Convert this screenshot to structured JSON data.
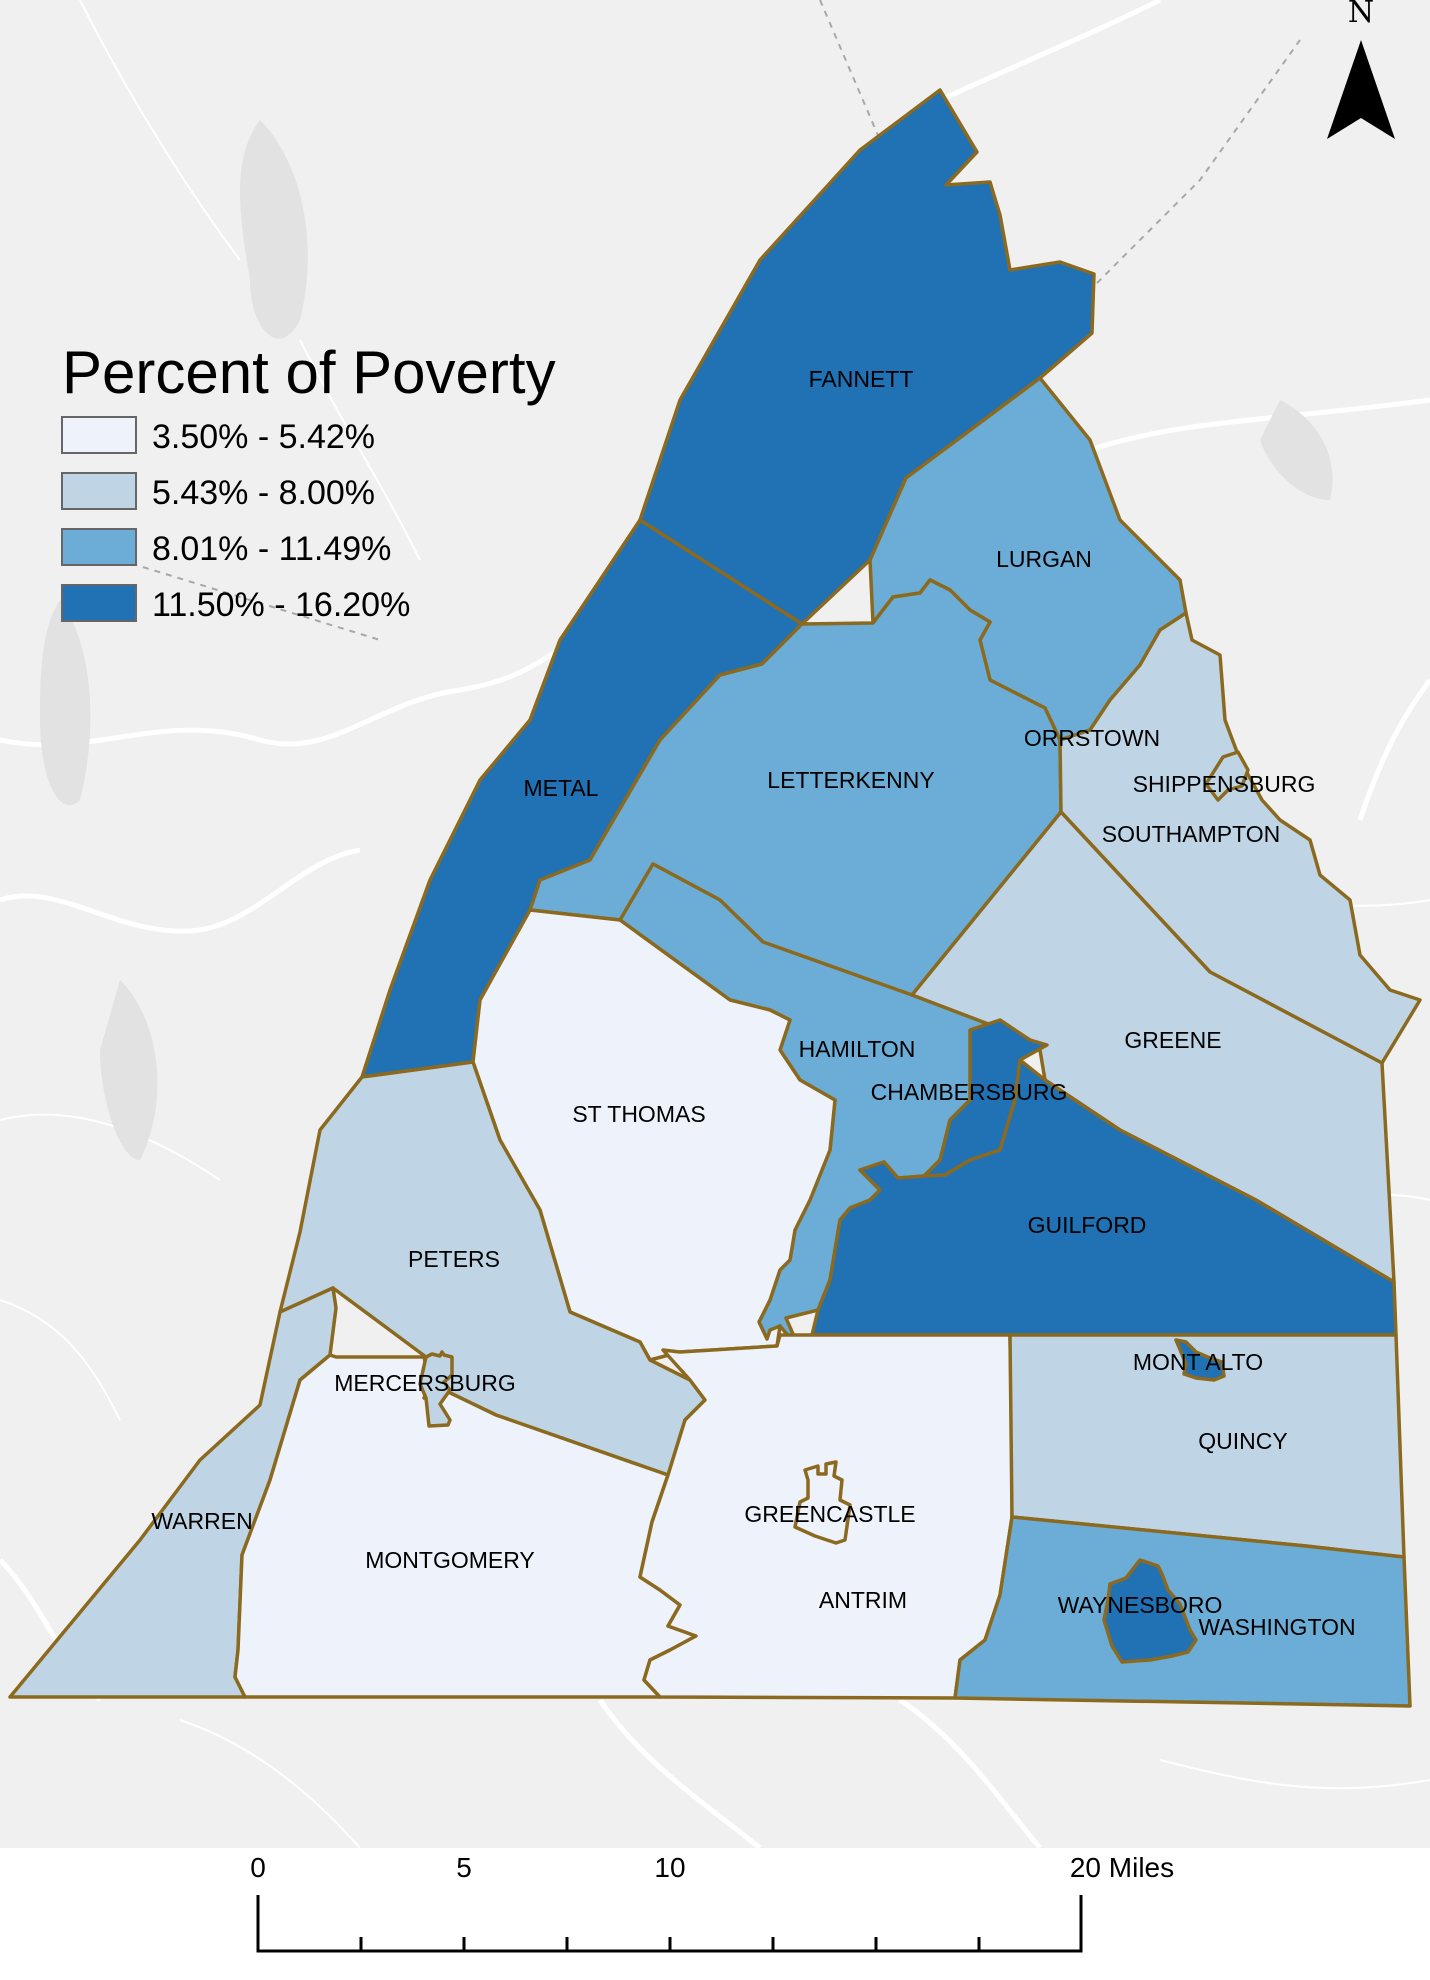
{
  "legend": {
    "title": "Percent of Poverty",
    "classes": [
      {
        "label": "3.50% - 5.42%",
        "color": "#edf2fb"
      },
      {
        "label": "5.43% - 8.00%",
        "color": "#bfd5e6"
      },
      {
        "label": "8.01% - 11.49%",
        "color": "#6badd6"
      },
      {
        "label": "11.50% - 16.20%",
        "color": "#2171b5"
      }
    ]
  },
  "boundary_color": "#8b6a1f",
  "north_arrow": {
    "label": "N",
    "icon": "north-arrow-icon"
  },
  "scale_bar": {
    "labels": [
      "0",
      "5",
      "10",
      "20 Miles"
    ]
  },
  "municipalities": [
    {
      "name": "FANNETT",
      "class": 3
    },
    {
      "name": "METAL",
      "class": 3
    },
    {
      "name": "LURGAN",
      "class": 2
    },
    {
      "name": "LETTERKENNY",
      "class": 2
    },
    {
      "name": "ORRSTOWN",
      "class": 1
    },
    {
      "name": "SHIPPENSBURG",
      "class": 1
    },
    {
      "name": "SOUTHAMPTON",
      "class": 1
    },
    {
      "name": "HAMILTON",
      "class": 2
    },
    {
      "name": "CHAMBERSBURG",
      "class": 3
    },
    {
      "name": "GREENE",
      "class": 1
    },
    {
      "name": "ST THOMAS",
      "class": 0
    },
    {
      "name": "GUILFORD",
      "class": 3
    },
    {
      "name": "PETERS",
      "class": 1
    },
    {
      "name": "MERCERSBURG",
      "class": 1
    },
    {
      "name": "WARREN",
      "class": 1
    },
    {
      "name": "MONTGOMERY",
      "class": 0
    },
    {
      "name": "GREENCASTLE",
      "class": 0
    },
    {
      "name": "ANTRIM",
      "class": 0
    },
    {
      "name": "MONT ALTO",
      "class": 3
    },
    {
      "name": "QUINCY",
      "class": 1
    },
    {
      "name": "WAYNESBORO",
      "class": 3
    },
    {
      "name": "WASHINGTON",
      "class": 2
    }
  ]
}
